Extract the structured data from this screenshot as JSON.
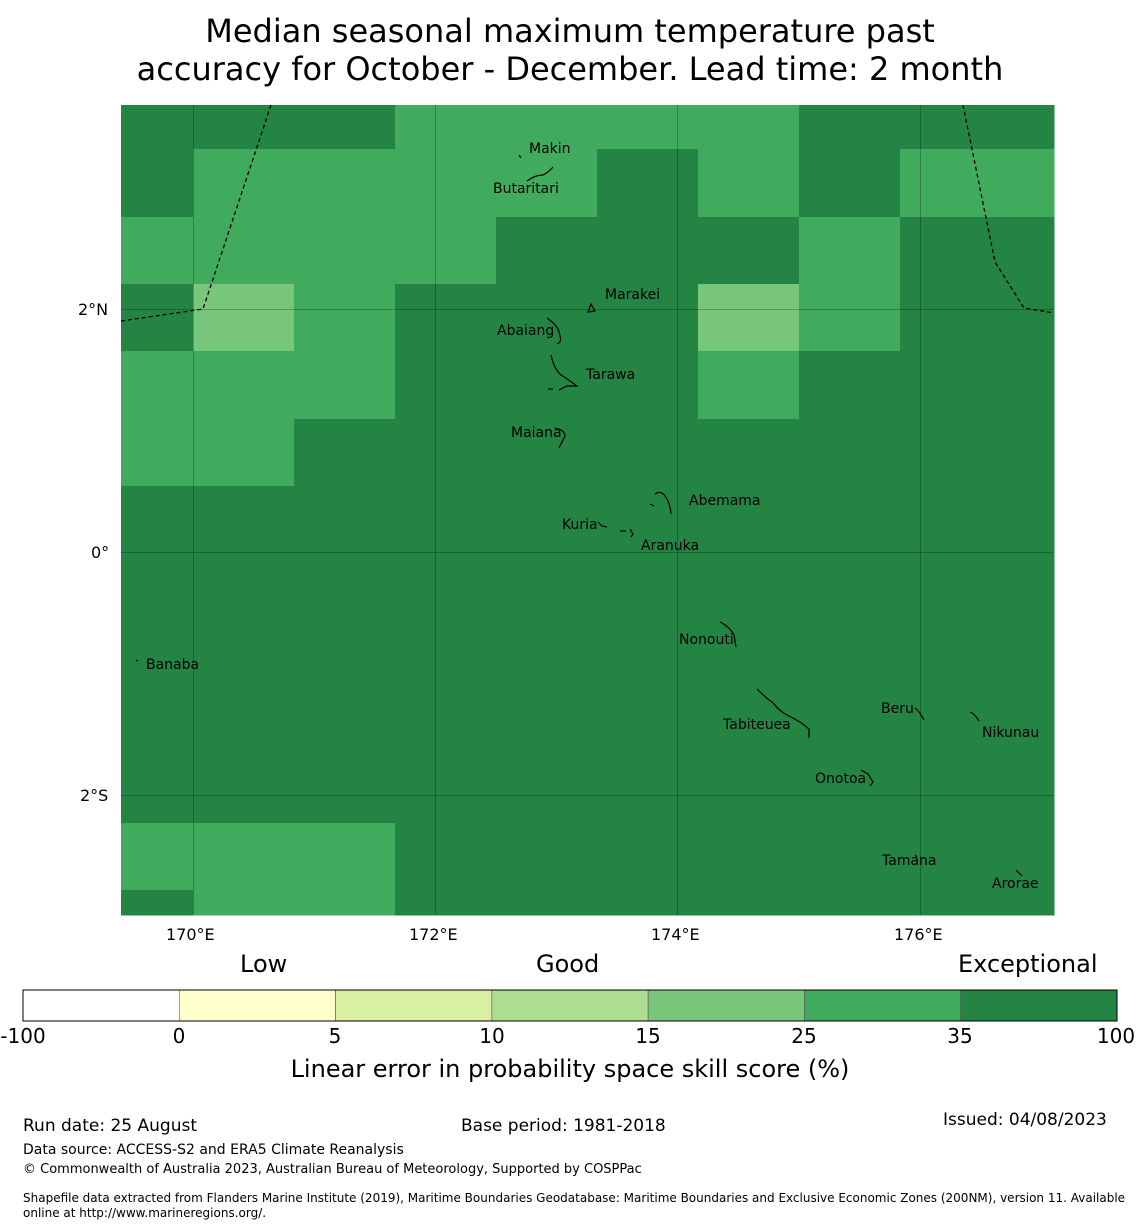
{
  "title_line1": "Median seasonal maximum temperature past",
  "title_line2": "accuracy for October - December. Lead time: 2 month",
  "map": {
    "lon_ticks": [
      "170°E",
      "172°E",
      "174°E",
      "176°E"
    ],
    "lat_ticks": [
      "2°N",
      "0°",
      "2°S"
    ],
    "places": [
      "Makin",
      "Butaritari",
      "Marakei",
      "Abaiang",
      "Tarawa",
      "Maiana",
      "Abemama",
      "Kuria",
      "Aranuka",
      "Nonouti",
      "Banaba",
      "Beru",
      "Tabiteuea",
      "Nikunau",
      "Onotoa",
      "Tamana",
      "Arorae"
    ],
    "grid_categories": [
      [
        6,
        6,
        6,
        5,
        5,
        5,
        5,
        6,
        6,
        6,
        6
      ],
      [
        6,
        5,
        5,
        5,
        5,
        6,
        5,
        6,
        5,
        5,
        5
      ],
      [
        5,
        5,
        5,
        5,
        6,
        6,
        6,
        5,
        6,
        6,
        6
      ],
      [
        6,
        4,
        5,
        6,
        6,
        6,
        4,
        5,
        6,
        6,
        6
      ],
      [
        5,
        5,
        5,
        6,
        6,
        6,
        5,
        6,
        6,
        6,
        6
      ],
      [
        5,
        5,
        6,
        6,
        6,
        6,
        6,
        6,
        6,
        6,
        6
      ],
      [
        6,
        6,
        6,
        6,
        6,
        6,
        6,
        6,
        6,
        6,
        6
      ],
      [
        6,
        6,
        6,
        6,
        6,
        6,
        6,
        6,
        6,
        6,
        6
      ],
      [
        6,
        6,
        6,
        6,
        6,
        6,
        6,
        6,
        6,
        6,
        6
      ],
      [
        6,
        6,
        6,
        6,
        6,
        6,
        6,
        6,
        6,
        6,
        6
      ],
      [
        6,
        6,
        6,
        6,
        6,
        6,
        6,
        6,
        6,
        6,
        6
      ],
      [
        5,
        5,
        5,
        6,
        6,
        6,
        6,
        6,
        6,
        6,
        6
      ],
      [
        6,
        5,
        5,
        6,
        6,
        6,
        6,
        6,
        6,
        6,
        6
      ]
    ]
  },
  "colorbar": {
    "category_labels": [
      "Low",
      "Good",
      "Exceptional"
    ],
    "boundaries": [
      "-100",
      "0",
      "5",
      "10",
      "15",
      "25",
      "35",
      "100"
    ],
    "colors": [
      "#ffffff",
      "#ffffcc",
      "#d9f0a3",
      "#addd8e",
      "#78c679",
      "#41ab5d",
      "#238443"
    ],
    "label": "Linear error in probability space skill score (%)"
  },
  "footer": {
    "run_date": "Run date: 25 August",
    "base_period": "Base period: 1981-2018",
    "issued": "Issued: 04/08/2023",
    "data_source": "Data source: ACCESS-S2 and ERA5 Climate Reanalysis",
    "copyright": "© Commonwealth of Australia 2023, Australian Bureau of Meteorology, Supported by COSPPac",
    "shapefile_line1": "Shapefile data extracted from Flanders Marine Institute (2019), Maritime Boundaries Geodatabase: Maritime Boundaries and Exclusive Economic Zones (200NM), version 11. Available",
    "shapefile_line2": "online at http://www.marineregions.org/."
  }
}
